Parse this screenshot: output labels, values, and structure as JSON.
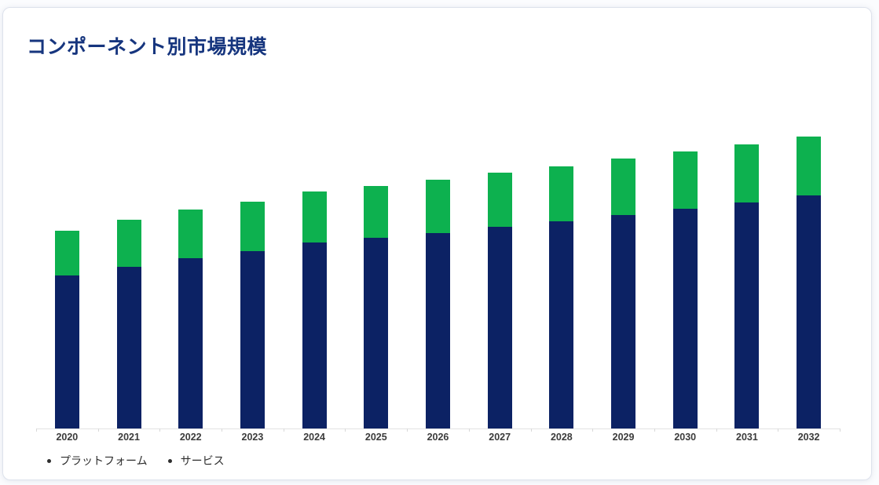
{
  "colors": {
    "title_text": "#16357e",
    "platform_bar": "#0c2264",
    "service_bar": "#0db14f",
    "axis_line": "#e2e2e2",
    "axis_tick": "#d8d8d8",
    "axis_label": "#3b3b3b",
    "legend_text": "#2d2d2d",
    "legend_marker": "#2e2e2e",
    "card_border": "#dde2ec"
  },
  "chart_data": {
    "type": "bar",
    "stacked": true,
    "title": "コンポーネント別市場規模",
    "categories": [
      "2020",
      "2021",
      "2022",
      "2023",
      "2024",
      "2025",
      "2026",
      "2027",
      "2028",
      "2029",
      "2030",
      "2031",
      "2032"
    ],
    "series": [
      {
        "name": "プラットフォーム",
        "color": "#0c2264",
        "values": [
          52.4,
          55.4,
          58.3,
          60.7,
          63.7,
          65.3,
          66.9,
          69.1,
          70.9,
          73.1,
          75.2,
          77.4,
          79.8
        ]
      },
      {
        "name": "サービス",
        "color": "#0db14f",
        "values": [
          15.4,
          16.1,
          16.7,
          16.9,
          17.5,
          17.7,
          18.3,
          18.5,
          18.8,
          19.3,
          19.6,
          19.9,
          20.2
        ]
      }
    ],
    "xlabel": "",
    "ylabel": "",
    "ylim": [
      0,
      100
    ],
    "value_units": "relative index estimated from bar heights (no y-axis labels shown; tallest 2032 bar = 100)",
    "grid": false,
    "y_axis_visible": false,
    "legend_position": "bottom-left"
  }
}
